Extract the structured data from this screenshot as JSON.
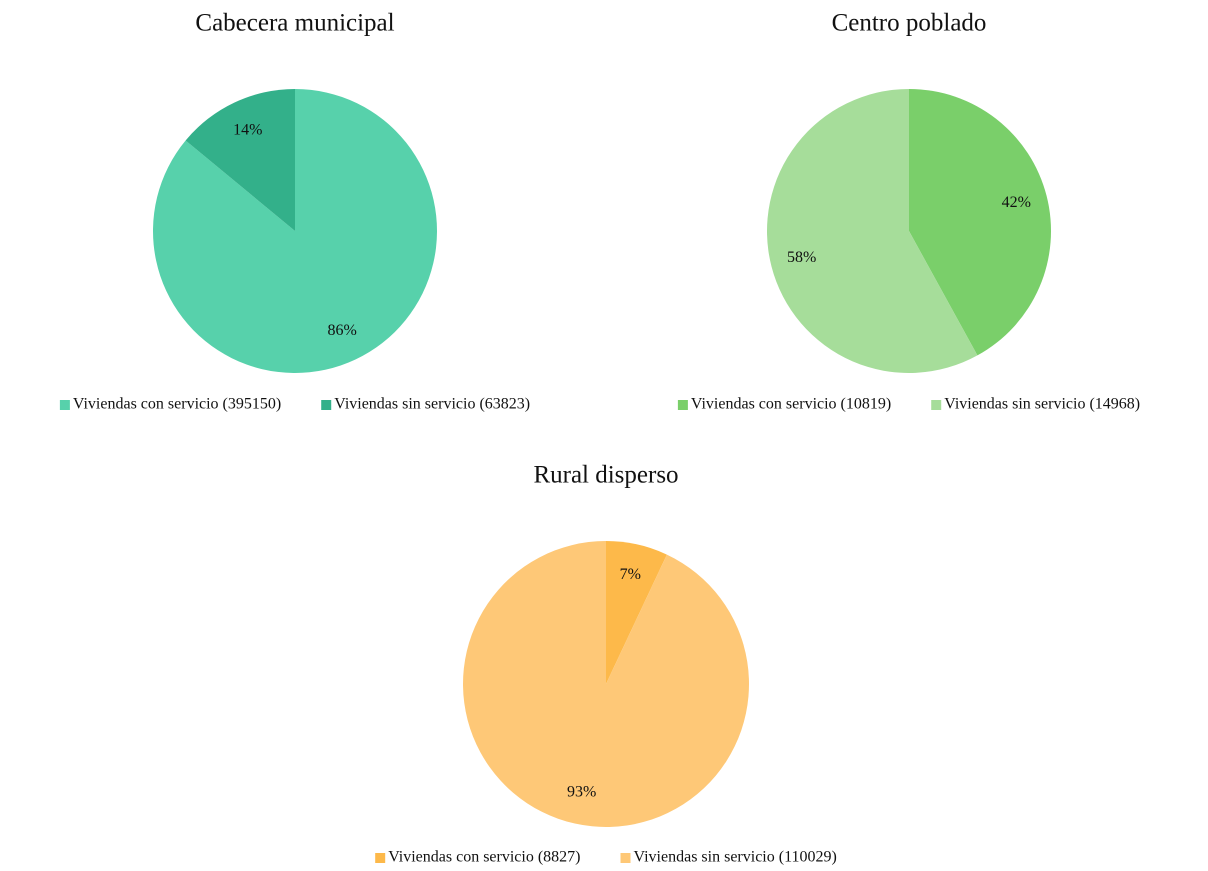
{
  "chart_data": [
    {
      "type": "pie",
      "title": "Cabecera municipal",
      "categories": [
        "Viviendas con servicio (395150)",
        "Viviendas sin servicio (63823)"
      ],
      "values": [
        86,
        14
      ],
      "value_labels": [
        "86%",
        "14%"
      ],
      "colors": [
        "#57d1ab",
        "#33b08a"
      ]
    },
    {
      "type": "pie",
      "title": "Centro poblado",
      "categories": [
        "Viviendas con servicio (10819)",
        "Viviendas sin servicio (14968)"
      ],
      "values": [
        42,
        58
      ],
      "value_labels": [
        "42%",
        "58%"
      ],
      "colors": [
        "#7acf6a",
        "#a6dd9a"
      ]
    },
    {
      "type": "pie",
      "title": "Rural disperso",
      "categories": [
        "Viviendas con servicio (8827)",
        "Viviendas sin servicio (110029)"
      ],
      "values": [
        7,
        93
      ],
      "value_labels": [
        "7%",
        "93%"
      ],
      "colors": [
        "#fdb94a",
        "#fec877"
      ]
    }
  ]
}
